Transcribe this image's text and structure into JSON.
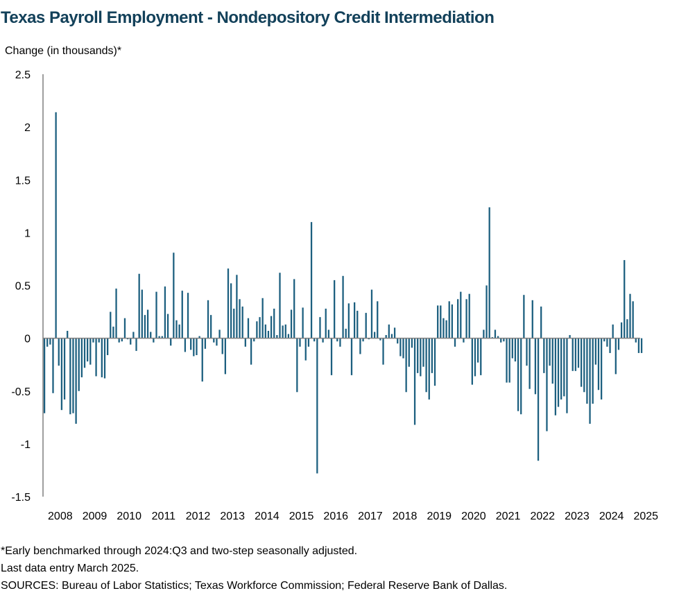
{
  "title": "Texas Payroll Employment - Nondepository Credit Intermediation",
  "chart_data": {
    "type": "bar",
    "title": "Texas Payroll Employment - Nondepository Credit Intermediation",
    "ylabel": "Change (in thousands)*",
    "xlabel": "",
    "ylim": [
      -1.5,
      2.5
    ],
    "yticks": [
      "2.5",
      "2",
      "1.5",
      "1",
      "0.5",
      "0",
      "-0.5",
      "-1",
      "-1.5"
    ],
    "ytick_values": [
      2.5,
      2,
      1.5,
      1,
      0.5,
      0,
      -0.5,
      -1,
      -1.5
    ],
    "year_labels": [
      "2008",
      "2009",
      "2010",
      "2011",
      "2012",
      "2013",
      "2014",
      "2015",
      "2016",
      "2017",
      "2018",
      "2019",
      "2020",
      "2021",
      "2022",
      "2023",
      "2024",
      "2025"
    ],
    "first_period": "2008-01",
    "last_period": "2025-03",
    "grid": false,
    "legend": "none",
    "bar_color": "#1c5f7f",
    "values": [
      -0.71,
      -0.08,
      -0.06,
      -0.52,
      2.14,
      -0.26,
      -0.68,
      -0.58,
      0.07,
      -0.72,
      -0.71,
      -0.81,
      -0.5,
      -0.37,
      -0.28,
      -0.22,
      -0.25,
      -0.04,
      -0.36,
      -0.04,
      -0.37,
      -0.38,
      -0.16,
      0.25,
      0.11,
      0.47,
      -0.04,
      -0.03,
      0.19,
      -0.01,
      -0.06,
      0.06,
      -0.12,
      0.61,
      0.46,
      0.22,
      0.27,
      0.06,
      -0.04,
      0.44,
      0.02,
      0.02,
      0.49,
      0.23,
      -0.07,
      0.81,
      0.17,
      0.13,
      0.45,
      -0.13,
      0.43,
      -0.11,
      -0.17,
      -0.16,
      0.02,
      -0.41,
      -0.1,
      0.36,
      0.22,
      -0.04,
      -0.07,
      0.08,
      -0.15,
      -0.34,
      0.66,
      0.52,
      0.28,
      0.6,
      0.37,
      0.3,
      -0.08,
      0.19,
      -0.25,
      -0.03,
      0.16,
      0.2,
      0.38,
      0.13,
      0.07,
      0.21,
      0.28,
      0.03,
      0.62,
      0.12,
      0.13,
      0.04,
      0.27,
      0.56,
      -0.51,
      -0.08,
      0.29,
      -0.21,
      -0.08,
      1.1,
      -0.03,
      -1.28,
      0.2,
      -0.04,
      0.28,
      0.08,
      -0.35,
      0.55,
      -0.03,
      -0.08,
      0.59,
      0.09,
      0.33,
      -0.35,
      0.34,
      0.26,
      -0.15,
      -0.03,
      0.24,
      -0.01,
      0.46,
      0.06,
      0.35,
      -0.02,
      -0.25,
      0.03,
      0.13,
      0.04,
      0.1,
      -0.05,
      -0.17,
      -0.19,
      -0.51,
      -0.27,
      -0.09,
      -0.82,
      -0.33,
      -0.36,
      -0.27,
      -0.51,
      -0.58,
      -0.33,
      -0.45,
      0.31,
      0.31,
      0.19,
      0.17,
      0.35,
      0.32,
      -0.08,
      0.37,
      0.44,
      -0.04,
      0.37,
      0.42,
      -0.44,
      -0.36,
      -0.23,
      -0.35,
      0.08,
      0.5,
      1.24,
      0.01,
      0.08,
      0.02,
      -0.04,
      -0.03,
      -0.42,
      -0.42,
      -0.19,
      -0.22,
      -0.69,
      -0.72,
      0.41,
      -0.26,
      -0.48,
      0.36,
      -0.53,
      -1.16,
      0.3,
      -0.33,
      -0.88,
      -0.26,
      -0.43,
      -0.73,
      -0.65,
      -0.58,
      -0.55,
      -0.71,
      0.03,
      -0.31,
      -0.31,
      -0.28,
      -0.46,
      -0.51,
      -0.62,
      -0.81,
      -0.62,
      -0.25,
      -0.49,
      -0.58,
      -0.03,
      -0.08,
      -0.14,
      0.13,
      -0.34,
      -0.11,
      0.15,
      0.74,
      0.18,
      0.42,
      0.35,
      -0.04,
      -0.14,
      -0.14
    ]
  },
  "notes": [
    "*Early benchmarked through 2024:Q3 and two-step seasonally adjusted.",
    "Last data entry March 2025.",
    "SOURCES:  Bureau of Labor Statistics; Texas Workforce Commission;  Federal Reserve Bank of Dallas."
  ]
}
